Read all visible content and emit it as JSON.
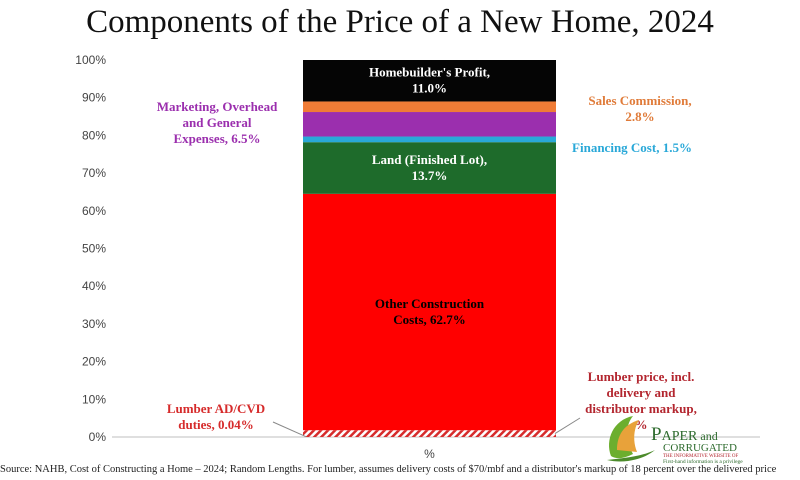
{
  "title": "Components of the Price of a New Home, 2024",
  "source_note": "Source: NAHB, Cost of Constructing a Home – 2024; Random Lengths.  For lumber, assumes delivery costs of $70/mbf and a distributor's markup of 18 percent over the delivered price",
  "logo": {
    "name": "PAPER and CORRUGATED",
    "tagline": "THE INFORMATIVE WEBSITE OF",
    "motto": "First-hand information is a privilege"
  },
  "chart_data": {
    "type": "bar",
    "stacked": true,
    "categories": [
      "%"
    ],
    "xlabel": "%",
    "ylim": [
      0,
      100
    ],
    "yticks": [
      "0%",
      "10%",
      "20%",
      "30%",
      "40%",
      "50%",
      "60%",
      "70%",
      "80%",
      "90%",
      "100%"
    ],
    "grid": false,
    "series": [
      {
        "name": "Lumber AD/CVD duties, 0.04%",
        "value": 0.04,
        "color": "#d62b2b",
        "label_lines": [
          "Lumber AD/CVD",
          "duties, 0.04%"
        ]
      },
      {
        "name": "Lumber price, incl. delivery and distributor markup",
        "value": 1.76,
        "color": "#ff8a80",
        "label_lines": [
          "Lumber price, incl.",
          "delivery and",
          "distributor markup,",
          "%"
        ]
      },
      {
        "name": "Other Construction Costs, 62.7%",
        "value": 62.7,
        "color": "#ff0000",
        "label_lines": [
          "Other Construction",
          "Costs, 62.7%"
        ]
      },
      {
        "name": "Land (Finished Lot), 13.7%",
        "value": 13.7,
        "color": "#1e6b2b",
        "label_lines": [
          "Land (Finished Lot),",
          "13.7%"
        ]
      },
      {
        "name": "Financing Cost, 1.5%",
        "value": 1.5,
        "color": "#29a8d8",
        "label_lines": [
          "Financing Cost, 1.5%"
        ]
      },
      {
        "name": "Marketing, Overhead and General Expenses, 6.5%",
        "value": 6.5,
        "color": "#9b2fae",
        "label_lines": [
          "Marketing, Overhead",
          "and General",
          "Expenses, 6.5%"
        ]
      },
      {
        "name": "Sales Commission, 2.8%",
        "value": 2.8,
        "color": "#f07c36",
        "label_lines": [
          "Sales Commission,",
          "2.8%"
        ]
      },
      {
        "name": "Homebuilder's Profit, 11.0%",
        "value": 11.0,
        "color": "#050505",
        "label_lines": [
          "Homebuilder's Profit,",
          "11.0%"
        ]
      }
    ]
  }
}
